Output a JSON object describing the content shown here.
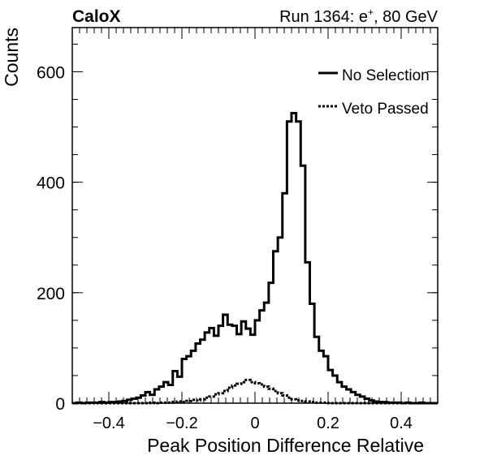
{
  "figure": {
    "experiment_label": "CaloX",
    "run_label_prefix": "Run 1364: e",
    "run_label_sup": "+",
    "run_label_suffix": ", 80 GeV"
  },
  "chart_data": {
    "type": "line",
    "style": "step histogram",
    "xlabel": "Peak Position Difference Relative",
    "ylabel": "Counts",
    "xlim": [
      -0.5,
      0.5
    ],
    "ylim": [
      0,
      680
    ],
    "bin_width": 0.0125,
    "x_ticks": [
      -0.4,
      -0.2,
      0,
      0.2,
      0.4
    ],
    "x_tick_labels": [
      "−0.4",
      "−0.2",
      "0",
      "0.2",
      "0.4"
    ],
    "y_ticks": [
      0,
      200,
      400,
      600
    ],
    "y_tick_labels": [
      "0",
      "200",
      "400",
      "600"
    ],
    "legend_position": "top-right",
    "series": [
      {
        "name": "No Selection",
        "line": "solid",
        "x": [
          -0.5,
          -0.4875,
          -0.475,
          -0.4625,
          -0.45,
          -0.4375,
          -0.425,
          -0.4125,
          -0.4,
          -0.3875,
          -0.375,
          -0.3625,
          -0.35,
          -0.3375,
          -0.325,
          -0.3125,
          -0.3,
          -0.2875,
          -0.275,
          -0.2625,
          -0.25,
          -0.2375,
          -0.225,
          -0.2125,
          -0.2,
          -0.1875,
          -0.175,
          -0.1625,
          -0.15,
          -0.1375,
          -0.125,
          -0.1125,
          -0.1,
          -0.0875,
          -0.075,
          -0.0625,
          -0.05,
          -0.0375,
          -0.025,
          -0.0125,
          0.0,
          0.0125,
          0.025,
          0.0375,
          0.05,
          0.0625,
          0.075,
          0.0875,
          0.1,
          0.1125,
          0.125,
          0.1375,
          0.15,
          0.1625,
          0.175,
          0.1875,
          0.2,
          0.2125,
          0.225,
          0.2375,
          0.25,
          0.2625,
          0.275,
          0.2875,
          0.3,
          0.3125,
          0.325,
          0.3375,
          0.35,
          0.3625,
          0.375,
          0.3875,
          0.4,
          0.4125,
          0.425,
          0.4375,
          0.45,
          0.4625,
          0.475,
          0.4875
        ],
        "values": [
          0,
          1,
          0,
          1,
          1,
          1,
          2,
          1,
          2,
          2,
          3,
          4,
          6,
          8,
          10,
          14,
          20,
          15,
          25,
          30,
          38,
          33,
          58,
          48,
          80,
          85,
          95,
          108,
          115,
          128,
          136,
          122,
          140,
          160,
          142,
          140,
          125,
          148,
          135,
          124,
          150,
          168,
          182,
          218,
          275,
          300,
          380,
          510,
          525,
          510,
          430,
          255,
          180,
          120,
          95,
          85,
          60,
          50,
          38,
          30,
          25,
          20,
          15,
          12,
          8,
          5,
          3,
          2,
          2,
          1,
          1,
          1,
          0,
          1,
          0,
          0,
          1,
          0,
          0,
          0
        ]
      },
      {
        "name": "Veto Passed",
        "line": "dotted",
        "x": [
          -0.5,
          -0.4875,
          -0.475,
          -0.4625,
          -0.45,
          -0.4375,
          -0.425,
          -0.4125,
          -0.4,
          -0.3875,
          -0.375,
          -0.3625,
          -0.35,
          -0.3375,
          -0.325,
          -0.3125,
          -0.3,
          -0.2875,
          -0.275,
          -0.2625,
          -0.25,
          -0.2375,
          -0.225,
          -0.2125,
          -0.2,
          -0.1875,
          -0.175,
          -0.1625,
          -0.15,
          -0.1375,
          -0.125,
          -0.1125,
          -0.1,
          -0.0875,
          -0.075,
          -0.0625,
          -0.05,
          -0.0375,
          -0.025,
          -0.0125,
          0.0,
          0.0125,
          0.025,
          0.0375,
          0.05,
          0.0625,
          0.075,
          0.0875,
          0.1,
          0.1125,
          0.125,
          0.1375,
          0.15,
          0.1625,
          0.175,
          0.1875,
          0.2,
          0.2125,
          0.225,
          0.2375,
          0.25,
          0.2625,
          0.275,
          0.2875,
          0.3,
          0.3125,
          0.325,
          0.3375,
          0.35,
          0.3625,
          0.375,
          0.3875,
          0.4,
          0.4125,
          0.425,
          0.4375,
          0.45,
          0.4625,
          0.475,
          0.4875
        ],
        "values": [
          0,
          0,
          0,
          0,
          0,
          0,
          0,
          0,
          0,
          0,
          0,
          0,
          0,
          0,
          0,
          0,
          0,
          1,
          0,
          1,
          1,
          1,
          2,
          3,
          2,
          4,
          6,
          5,
          7,
          10,
          12,
          16,
          18,
          22,
          28,
          32,
          35,
          38,
          42,
          38,
          36,
          34,
          30,
          26,
          22,
          18,
          14,
          10,
          7,
          5,
          4,
          3,
          2,
          1,
          1,
          1,
          0,
          0,
          0,
          0,
          0,
          0,
          0,
          0,
          0,
          0,
          0,
          0,
          0,
          0,
          0,
          0,
          0,
          0,
          0,
          0,
          0,
          0,
          0,
          0
        ]
      }
    ]
  }
}
